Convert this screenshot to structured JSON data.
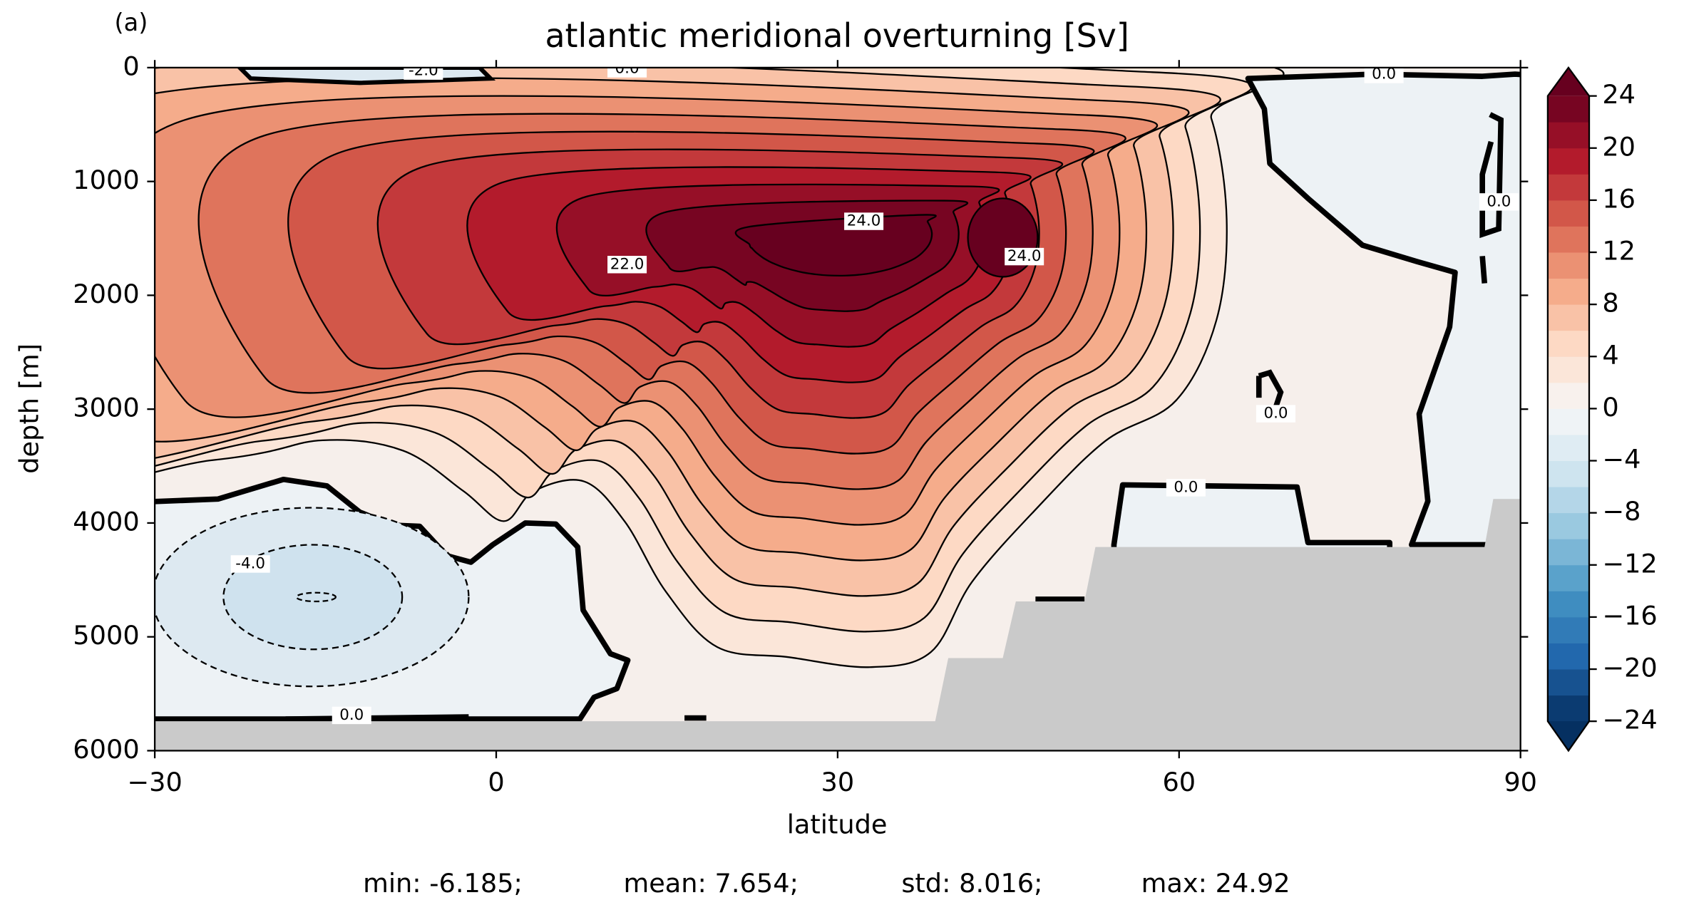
{
  "chart_data": {
    "type": "contour",
    "panel_label": "(a)",
    "title": "atlantic meridional overturning [Sv]",
    "x_label": "latitude",
    "y_label": "depth [m]",
    "xlim": [
      -30,
      90
    ],
    "xticks": [
      {
        "value": -30,
        "label": "−30"
      },
      0,
      30,
      60,
      90
    ],
    "ylim": [
      0,
      6000
    ],
    "y_inverted": true,
    "yticks": [
      0,
      1000,
      2000,
      3000,
      4000,
      5000,
      6000
    ],
    "colorbar": {
      "lim": [
        -24,
        24
      ],
      "level_step": 2,
      "extend": "both",
      "colormap": [
        "#053061",
        "#2166ac",
        "#4393c3",
        "#92c5de",
        "#d1e5f0",
        "#f7f7f7",
        "#fddbc7",
        "#f4a582",
        "#d6604d",
        "#b2182b",
        "#67001f"
      ],
      "ticks": [
        {
          "value": -24,
          "label": "−24"
        },
        {
          "value": -20,
          "label": "−20"
        },
        {
          "value": -16,
          "label": "−16"
        },
        {
          "value": -12,
          "label": "−12"
        },
        {
          "value": -8,
          "label": "−8"
        },
        {
          "value": -4,
          "label": "−4"
        },
        0,
        4,
        8,
        12,
        16,
        20,
        24
      ]
    },
    "contour_labels": [
      {
        "value": 24,
        "label": "24.0",
        "lat": 32.3,
        "depth": 1350
      },
      {
        "value": 24,
        "label": "24.0",
        "lat": 46.4,
        "depth": 1660
      },
      {
        "value": 22,
        "label": "22.0",
        "lat": 11.5,
        "depth": 1730
      },
      {
        "value": -2,
        "label": "-2.0",
        "lat": -6.4,
        "depth": 30
      },
      {
        "value": 0,
        "label": "0.0",
        "lat": 11.5,
        "depth": 10
      },
      {
        "value": 0,
        "label": "0.0",
        "lat": 78.0,
        "depth": 60
      },
      {
        "value": 0,
        "label": "0.0",
        "lat": 88.1,
        "depth": 1180
      },
      {
        "value": 0,
        "label": "0.0",
        "lat": 68.5,
        "depth": 3040
      },
      {
        "value": 0,
        "label": "0.0",
        "lat": 60.6,
        "depth": 3690
      },
      {
        "value": -4,
        "label": "-4.0",
        "lat": -21.6,
        "depth": 4360
      },
      {
        "value": 0,
        "label": "0.0",
        "lat": -12.7,
        "depth": 5690
      }
    ],
    "stats": [
      "min: -6.185;",
      "mean: 7.654;",
      "std: 8.016;",
      "max: 24.92"
    ]
  }
}
